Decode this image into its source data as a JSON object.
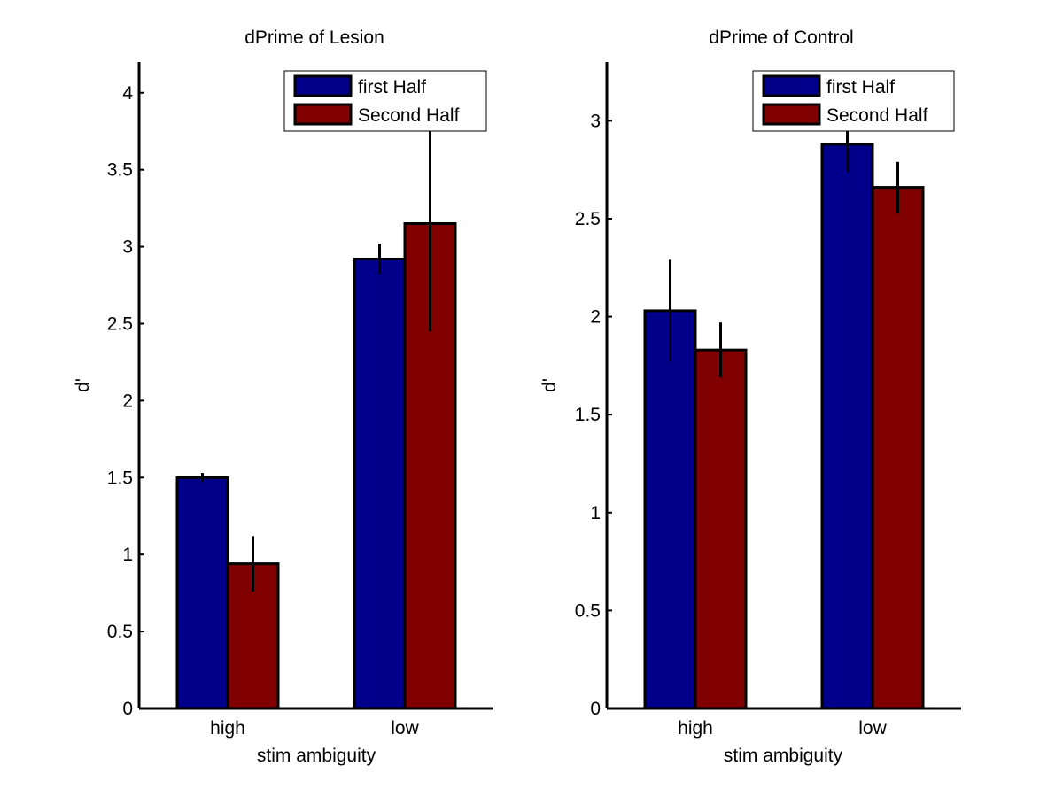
{
  "chart_data": [
    {
      "type": "bar",
      "title": "dPrime of Lesion",
      "xlabel": "stim ambiguity",
      "ylabel": "d'",
      "categories": [
        "high",
        "low"
      ],
      "ylim": [
        0,
        4.2
      ],
      "yticks": [
        0,
        0.5,
        1,
        1.5,
        2,
        2.5,
        3,
        3.5,
        4
      ],
      "ytick_labels": [
        "0",
        "0.5",
        "1",
        "1.5",
        "2",
        "2.5",
        "3",
        "3.5",
        "4"
      ],
      "series": [
        {
          "name": "first Half",
          "color": "#00008b",
          "values": [
            1.5,
            2.92
          ],
          "errors": [
            0.03,
            0.1
          ]
        },
        {
          "name": "Second Half",
          "color": "#800000",
          "values": [
            0.94,
            3.15
          ],
          "errors": [
            0.18,
            0.7
          ]
        }
      ],
      "legend": "top-right",
      "grid": false
    },
    {
      "type": "bar",
      "title": "dPrime of Control",
      "xlabel": "stim ambiguity",
      "ylabel": "d'",
      "categories": [
        "high",
        "low"
      ],
      "ylim": [
        0,
        3.3
      ],
      "yticks": [
        0,
        0.5,
        1,
        1.5,
        2,
        2.5,
        3
      ],
      "ytick_labels": [
        "0",
        "0.5",
        "1",
        "1.5",
        "2",
        "2.5",
        "3"
      ],
      "series": [
        {
          "name": "first Half",
          "color": "#00008b",
          "values": [
            2.03,
            2.88
          ],
          "errors": [
            0.26,
            0.14
          ]
        },
        {
          "name": "Second Half",
          "color": "#800000",
          "values": [
            1.83,
            2.66
          ],
          "errors": [
            0.14,
            0.13
          ]
        }
      ],
      "legend": "top-right",
      "grid": false
    }
  ]
}
